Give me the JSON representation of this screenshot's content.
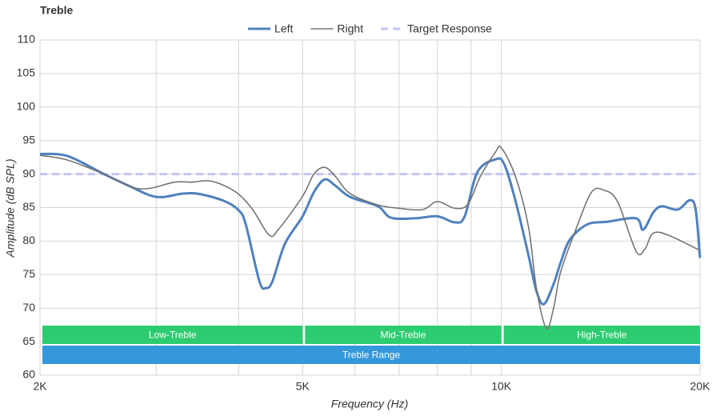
{
  "chart_data": {
    "type": "line",
    "title": "Treble",
    "xlabel": "Frequency (Hz)",
    "ylabel": "Amplitude (dB SPL)",
    "xscale": "log",
    "xlim": [
      2000,
      20000
    ],
    "ylim": [
      60,
      110
    ],
    "yticks": [
      60,
      65,
      70,
      75,
      80,
      85,
      90,
      95,
      100,
      105,
      110
    ],
    "xticks": [
      {
        "value": 2000,
        "label": "2K"
      },
      {
        "value": 3000,
        "label": null
      },
      {
        "value": 4000,
        "label": null
      },
      {
        "value": 5000,
        "label": "5K"
      },
      {
        "value": 6000,
        "label": null
      },
      {
        "value": 7000,
        "label": null
      },
      {
        "value": 8000,
        "label": null
      },
      {
        "value": 9000,
        "label": null
      },
      {
        "value": 10000,
        "label": "10K"
      },
      {
        "value": 20000,
        "label": "20K"
      }
    ],
    "grid": true,
    "legend": "top",
    "series": [
      {
        "name": "Left",
        "color": "#4f81bd",
        "width": 3,
        "dash": false,
        "x": [
          2000,
          2200,
          2500,
          2720,
          3000,
          3300,
          3500,
          3800,
          4000,
          4100,
          4300,
          4400,
          4500,
          4700,
          5000,
          5200,
          5400,
          5600,
          5900,
          6500,
          6800,
          7400,
          8000,
          8500,
          8800,
          9200,
          9800,
          10100,
          10500,
          11000,
          11300,
          11600,
          12000,
          12300,
          12700,
          13500,
          14500,
          16000,
          16400,
          17000,
          17500,
          18500,
          19300,
          19700,
          20000
        ],
        "values": [
          93,
          92.7,
          90,
          88.3,
          86.6,
          87.1,
          87,
          86,
          84.6,
          82.5,
          74,
          73,
          74,
          79.6,
          83.7,
          87.3,
          89.2,
          88.3,
          86.6,
          85.2,
          83.5,
          83.4,
          83.7,
          82.8,
          83.7,
          90.3,
          92.2,
          91.5,
          86.1,
          77.8,
          72.6,
          70.6,
          73.6,
          76.8,
          80.2,
          82.5,
          82.9,
          83.4,
          81.7,
          84.3,
          85.2,
          84.7,
          86.1,
          84.7,
          77.5
        ]
      },
      {
        "name": "Right",
        "color": "#757575",
        "width": 1.6,
        "dash": false,
        "x": [
          2000,
          2200,
          2500,
          2830,
          3200,
          3400,
          3600,
          3800,
          4000,
          4200,
          4450,
          4600,
          5000,
          5200,
          5400,
          5600,
          5900,
          6500,
          7000,
          7600,
          8000,
          8500,
          8900,
          9300,
          9800,
          10000,
          10500,
          11000,
          11300,
          11700,
          12000,
          12300,
          13000,
          13700,
          14300,
          15000,
          16000,
          16500,
          17000,
          18000,
          20000
        ],
        "values": [
          92.8,
          92.1,
          90,
          87.8,
          88.8,
          88.8,
          89,
          88.3,
          87,
          84.7,
          80.9,
          81.8,
          86.7,
          90,
          91,
          89.7,
          87.1,
          85.4,
          84.9,
          84.7,
          85.9,
          84.9,
          85.5,
          89.7,
          93.3,
          93.9,
          89.7,
          82,
          73,
          67,
          70,
          75.4,
          82,
          87.3,
          87.6,
          85.9,
          78.5,
          78.8,
          81.2,
          80.8,
          78.6
        ]
      },
      {
        "name": "Target Response",
        "color": "#c3c3f7",
        "width": 3,
        "dash": true,
        "x": [
          2000,
          20000
        ],
        "values": [
          90,
          90
        ]
      }
    ],
    "bands": [
      {
        "label": "Low-Treble",
        "from": 2000,
        "to": 5000,
        "color": "#2ecc71"
      },
      {
        "label": "Mid-Treble",
        "from": 5000,
        "to": 10000,
        "color": "#2ecc71"
      },
      {
        "label": "High-Treble",
        "from": 10000,
        "to": 20000,
        "color": "#2ecc71"
      }
    ],
    "range_band": {
      "label": "Treble Range",
      "from": 2000,
      "to": 20000,
      "color": "#3498db"
    }
  }
}
